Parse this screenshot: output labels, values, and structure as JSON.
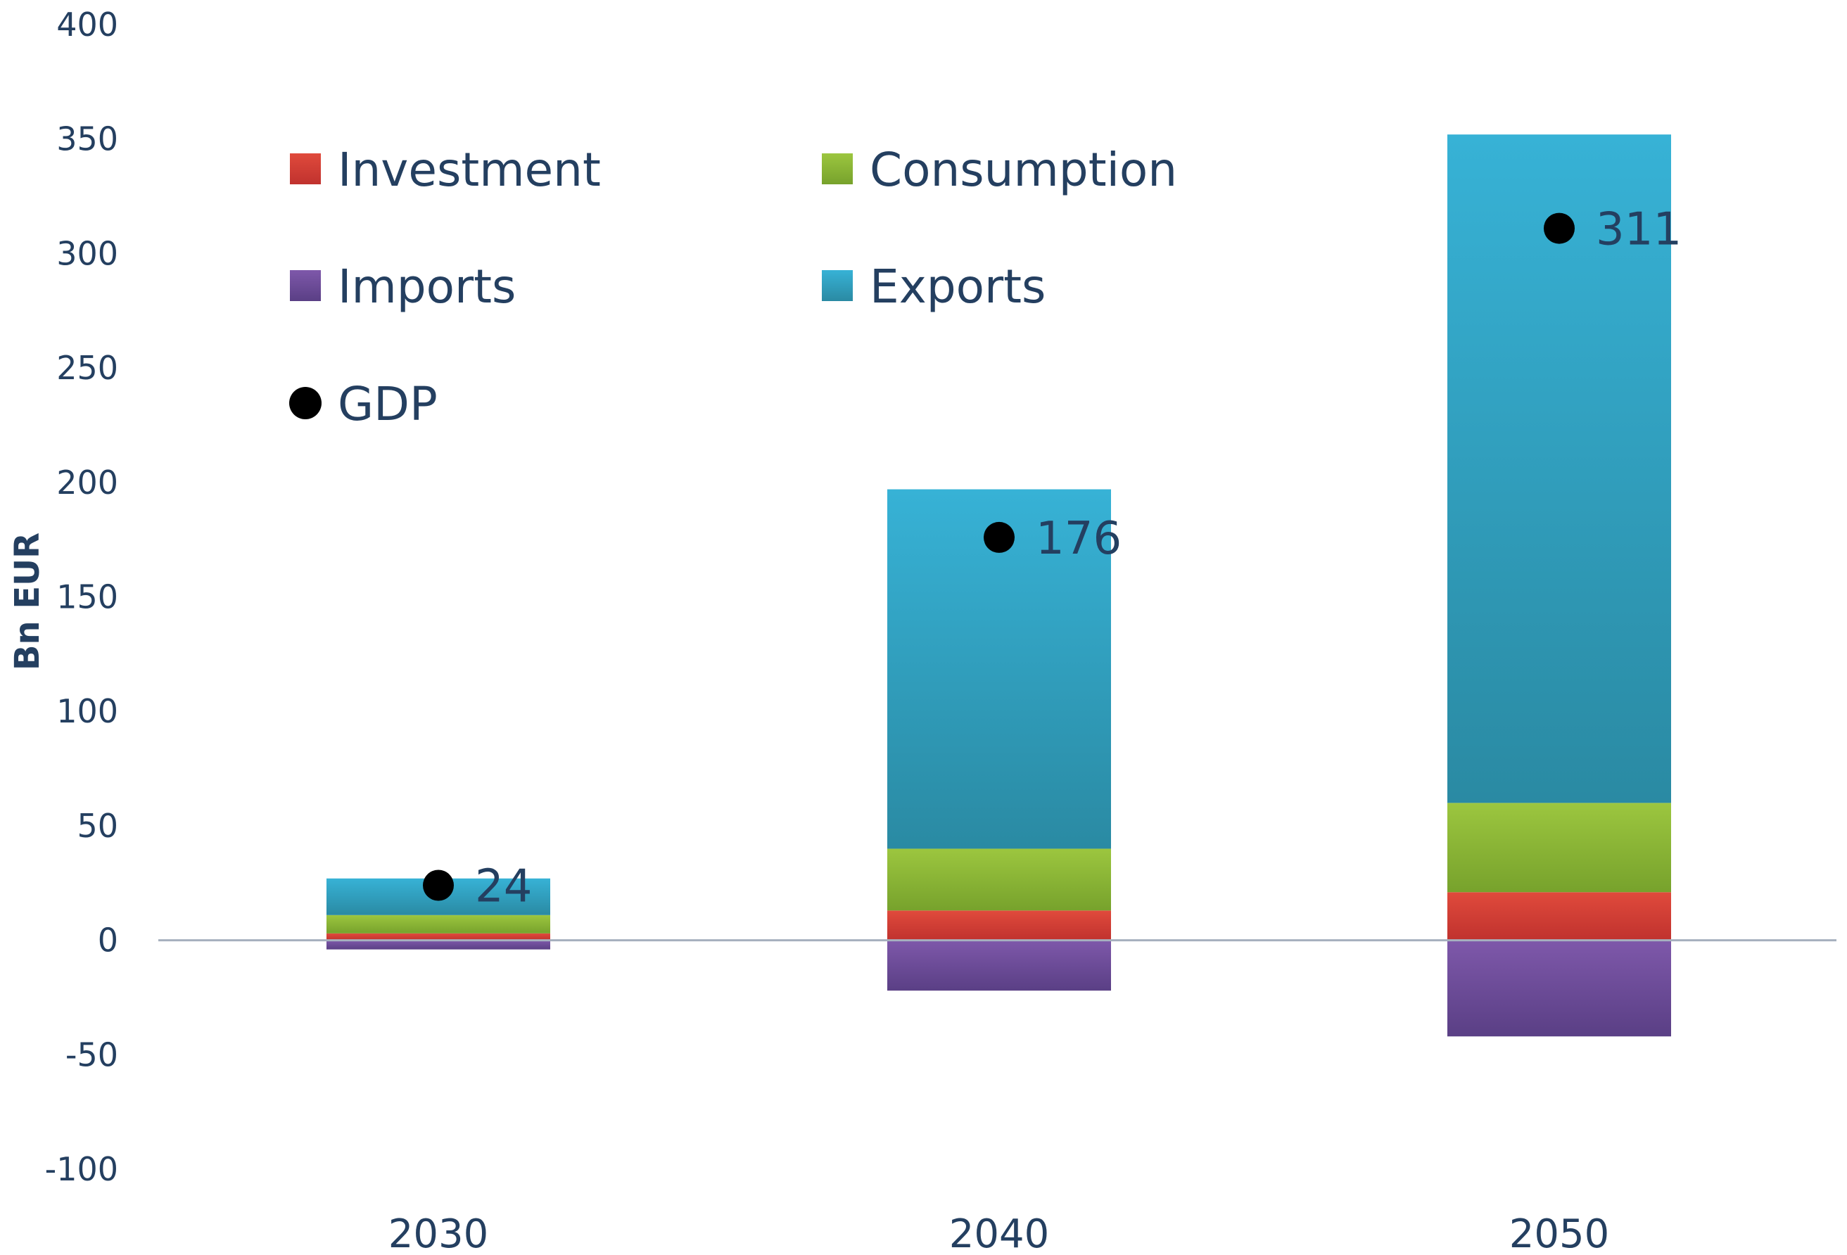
{
  "chart_data": {
    "type": "bar",
    "stacked": true,
    "title": "",
    "xlabel": "",
    "ylabel": "Bn EUR",
    "ylim": [
      -100,
      400
    ],
    "yticks": [
      -100,
      -50,
      0,
      50,
      100,
      150,
      200,
      250,
      300,
      350,
      400
    ],
    "categories": [
      "2030",
      "2040",
      "2050"
    ],
    "series": [
      {
        "name": "Investment",
        "color": "#c0322e",
        "color_dark": "#e04a3c",
        "values": [
          3,
          13,
          21
        ]
      },
      {
        "name": "Consumption",
        "color": "#77a22c",
        "color_dark": "#9cc63f",
        "values": [
          8,
          27,
          39
        ]
      },
      {
        "name": "Imports",
        "color": "#5a3f85",
        "color_dark": "#7e58aa",
        "values": [
          -4,
          -22,
          -42
        ]
      },
      {
        "name": "Exports",
        "color": "#2a8aa3",
        "color_dark": "#37b2d6",
        "values": [
          16,
          157,
          292
        ]
      }
    ],
    "gdp": {
      "name": "GDP",
      "color": "#000000",
      "values": [
        24,
        176,
        311
      ],
      "labels": [
        "24",
        "176",
        "311"
      ]
    },
    "legend": {
      "position": "top-left",
      "entries": [
        "Investment",
        "Consumption",
        "Imports",
        "Exports",
        "GDP"
      ]
    }
  }
}
